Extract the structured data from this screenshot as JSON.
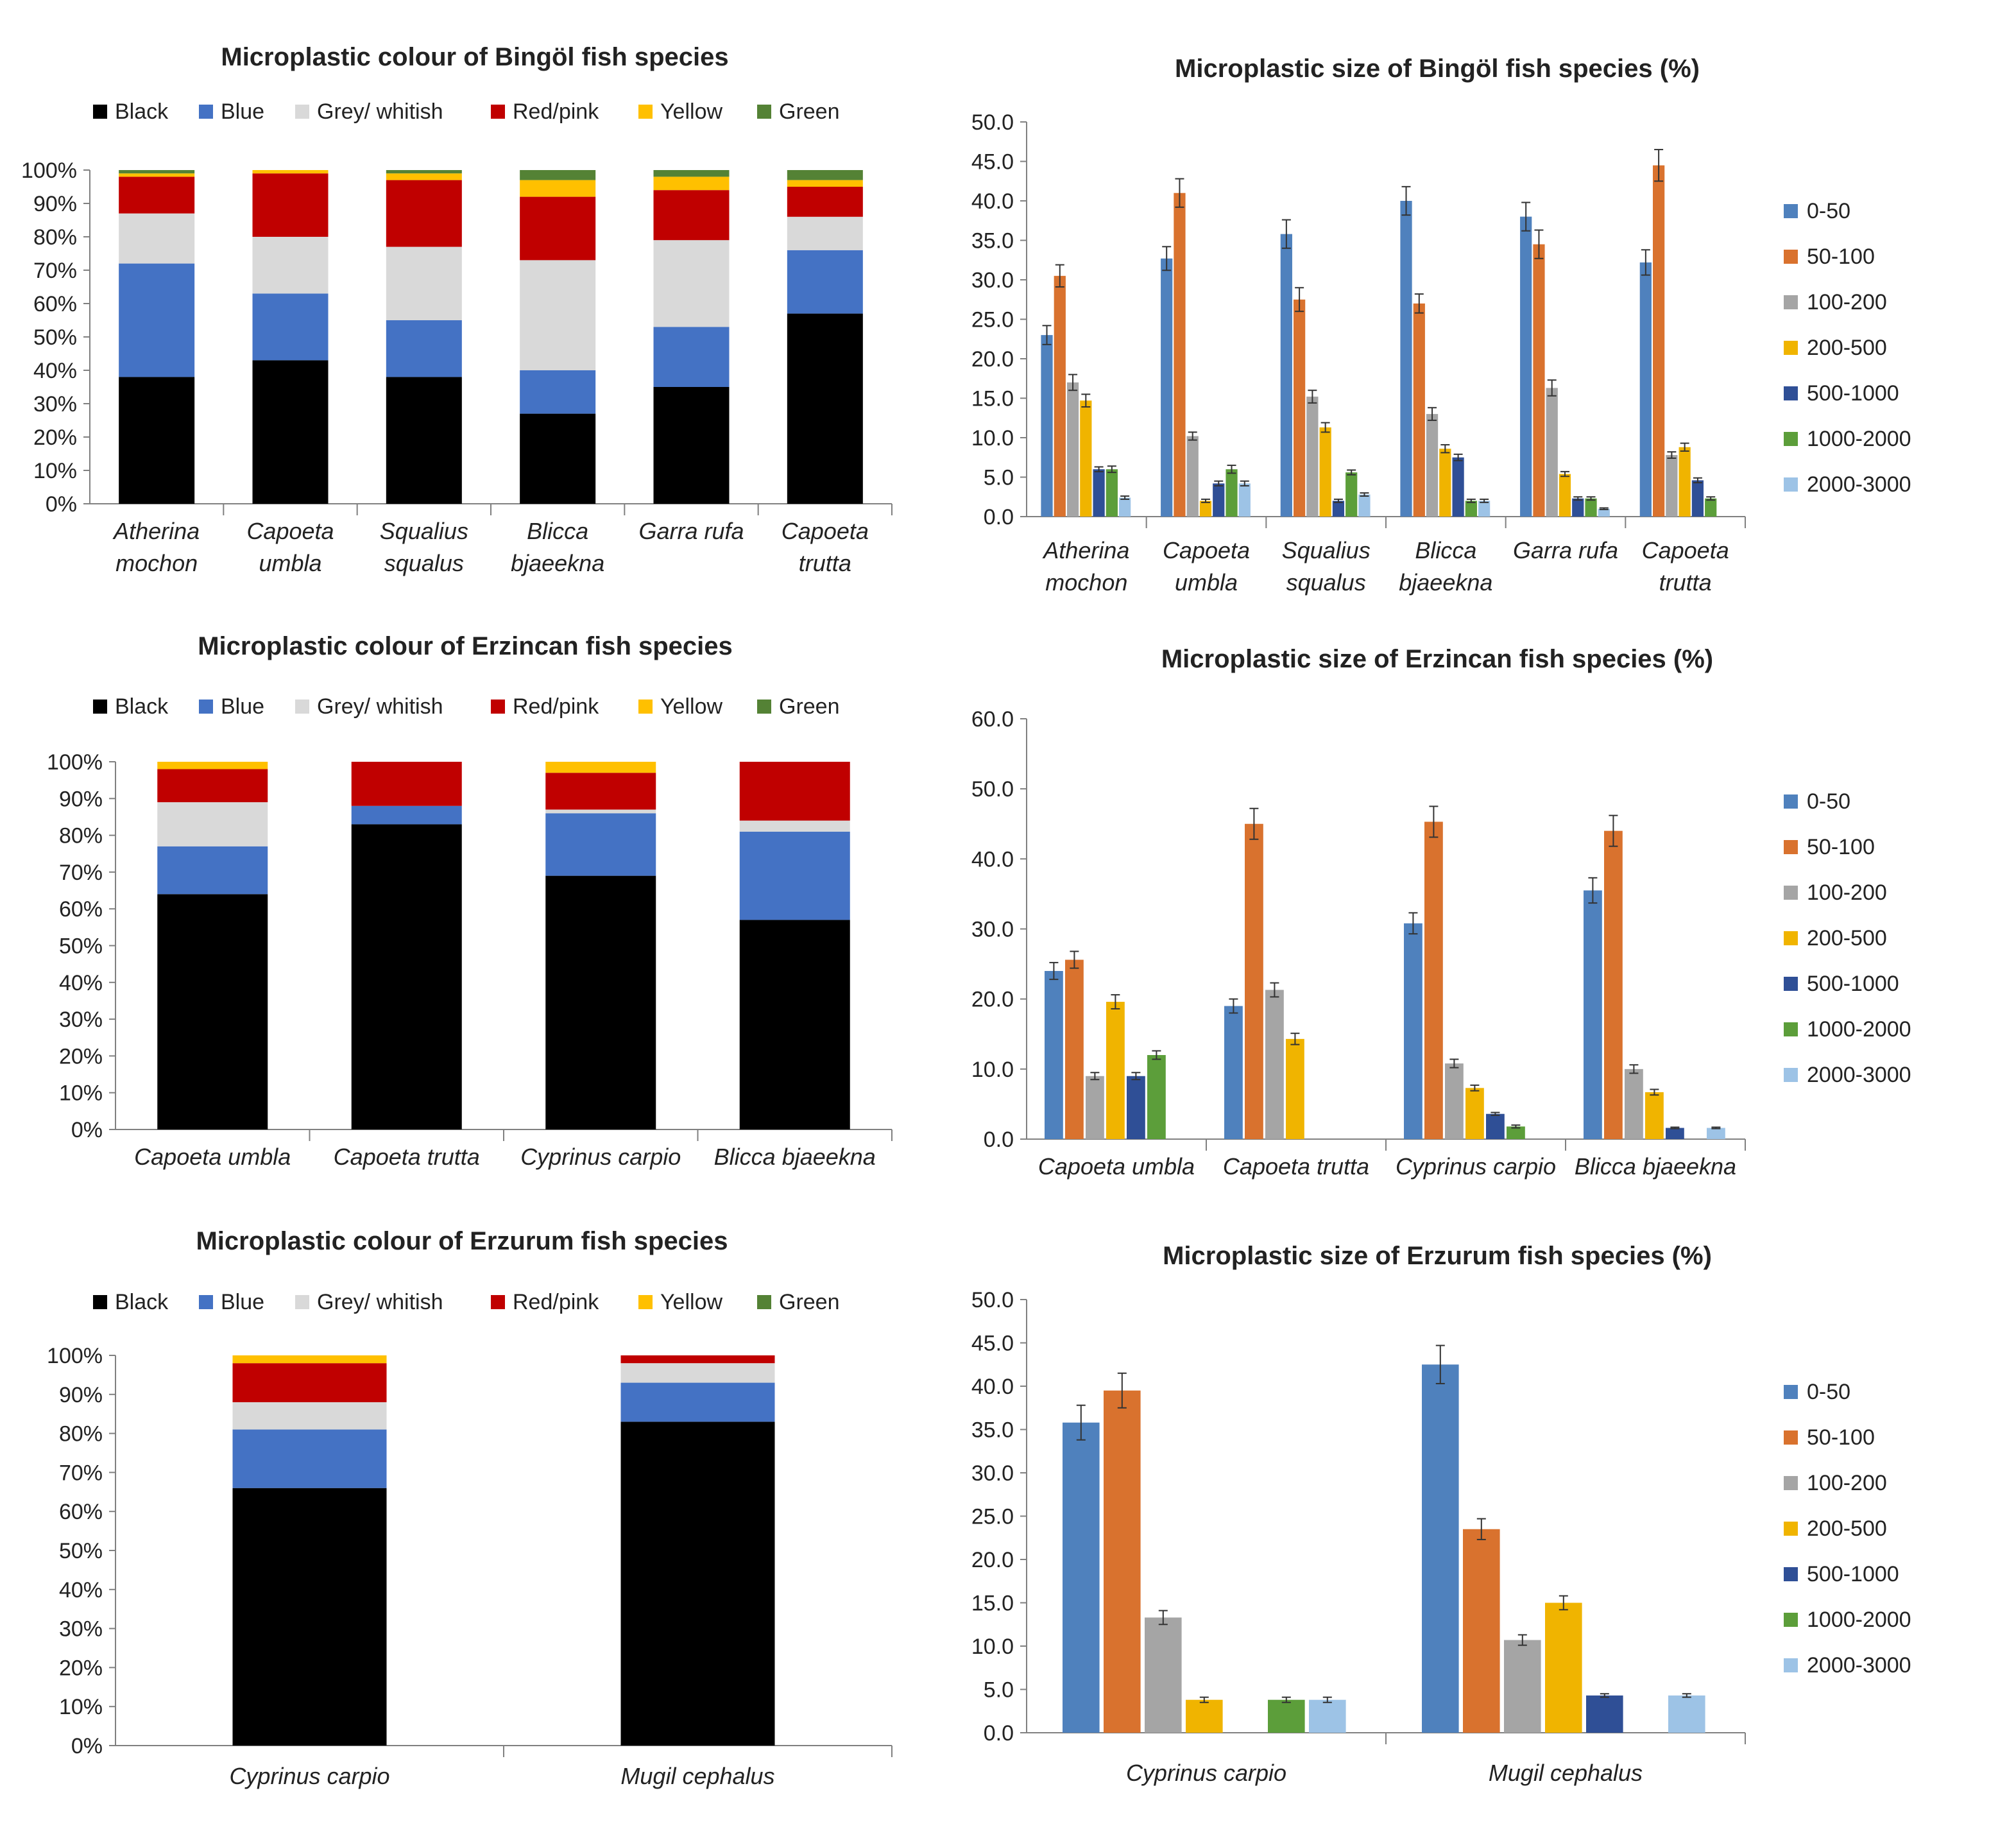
{
  "colors": {
    "Black": "#000000",
    "Blue": "#4472C4",
    "Grey/ whitish": "#D9D9D9",
    "Red/pink": "#C00000",
    "Yellow": "#FFC000",
    "Green": "#548235",
    "0-50": "#4F81BD",
    "50-100": "#D9722E",
    "100-200": "#A5A5A5",
    "200-500": "#F0B400",
    "500-1000": "#2F4F96",
    "1000-2000": "#5C9E3A",
    "2000-3000": "#9DC3E6",
    "axis": "#808080",
    "text": "#222222"
  },
  "chart_data": [
    {
      "id": "bingol-colour",
      "type": "bar",
      "stacked": true,
      "title": "Microplastic colour of Bingöl fish species",
      "legend_position": "top",
      "ylim": [
        0,
        100
      ],
      "y_ticks": [
        "0%",
        "10%",
        "20%",
        "30%",
        "40%",
        "50%",
        "60%",
        "70%",
        "80%",
        "90%",
        "100%"
      ],
      "categories": [
        "Atherina mochon",
        "Capoeta umbla",
        "Squalius squalus",
        "Blicca bjaeekna",
        "Garra rufa",
        "Capoeta trutta"
      ],
      "series": [
        {
          "name": "Black",
          "values": [
            38,
            43,
            38,
            27,
            35,
            57
          ]
        },
        {
          "name": "Blue",
          "values": [
            34,
            20,
            17,
            13,
            18,
            19
          ]
        },
        {
          "name": "Grey/ whitish",
          "values": [
            15,
            17,
            22,
            33,
            26,
            10
          ]
        },
        {
          "name": "Red/pink",
          "values": [
            11,
            19,
            20,
            19,
            15,
            9
          ]
        },
        {
          "name": "Yellow",
          "values": [
            1,
            1,
            2,
            5,
            4,
            2
          ]
        },
        {
          "name": "Green",
          "values": [
            1,
            0,
            1,
            3,
            2,
            3
          ]
        }
      ]
    },
    {
      "id": "bingol-size",
      "type": "bar",
      "stacked": false,
      "title": "Microplastic size of Bingöl fish species (%)",
      "legend_position": "right",
      "ylim": [
        0,
        50
      ],
      "y_ticks": [
        "0.0",
        "5.0",
        "10.0",
        "15.0",
        "20.0",
        "25.0",
        "30.0",
        "35.0",
        "40.0",
        "45.0",
        "50.0"
      ],
      "categories": [
        "Atherina mochon",
        "Capoeta umbla",
        "Squalius squalus",
        "Blicca bjaeekna",
        "Garra rufa",
        "Capoeta trutta"
      ],
      "series": [
        {
          "name": "0-50",
          "values": [
            23.0,
            32.7,
            35.8,
            40.0,
            38.0,
            32.2
          ]
        },
        {
          "name": "50-100",
          "values": [
            30.5,
            41.0,
            27.5,
            27.0,
            34.5,
            44.5
          ]
        },
        {
          "name": "100-200",
          "values": [
            17.0,
            10.2,
            15.2,
            13.0,
            16.3,
            7.8
          ]
        },
        {
          "name": "200-500",
          "values": [
            14.7,
            2.0,
            11.3,
            8.6,
            5.4,
            8.8
          ]
        },
        {
          "name": "500-1000",
          "values": [
            6.0,
            4.2,
            2.0,
            7.5,
            2.3,
            4.6
          ]
        },
        {
          "name": "1000-2000",
          "values": [
            6.0,
            6.0,
            5.6,
            2.0,
            2.3,
            2.3
          ]
        },
        {
          "name": "2000-3000",
          "values": [
            2.4,
            4.2,
            2.8,
            2.0,
            1.0,
            0
          ]
        }
      ],
      "errors": [
        [
          1.2,
          1.5,
          1.8,
          1.8,
          1.8,
          1.6
        ],
        [
          1.4,
          1.8,
          1.5,
          1.2,
          1.8,
          2.0
        ],
        [
          1.0,
          0.5,
          0.8,
          0.8,
          1.0,
          0.4
        ],
        [
          0.8,
          0.2,
          0.6,
          0.5,
          0.3,
          0.5
        ],
        [
          0.3,
          0.3,
          0.2,
          0.4,
          0.2,
          0.3
        ],
        [
          0.4,
          0.5,
          0.3,
          0.2,
          0.2,
          0.2
        ],
        [
          0.2,
          0.3,
          0.2,
          0.2,
          0.1,
          0
        ]
      ]
    },
    {
      "id": "erzincan-colour",
      "type": "bar",
      "stacked": true,
      "title": "Microplastic colour of Erzincan fish species",
      "legend_position": "top",
      "ylim": [
        0,
        100
      ],
      "y_ticks": [
        "0%",
        "10%",
        "20%",
        "30%",
        "40%",
        "50%",
        "60%",
        "70%",
        "80%",
        "90%",
        "100%"
      ],
      "categories": [
        "Capoeta umbla",
        "Capoeta trutta",
        "Cyprinus carpio",
        "Blicca bjaeekna"
      ],
      "series": [
        {
          "name": "Black",
          "values": [
            64,
            83,
            69,
            57
          ]
        },
        {
          "name": "Blue",
          "values": [
            13,
            5,
            17,
            24
          ]
        },
        {
          "name": "Grey/ whitish",
          "values": [
            12,
            0,
            1,
            3
          ]
        },
        {
          "name": "Red/pink",
          "values": [
            9,
            12,
            10,
            16
          ]
        },
        {
          "name": "Yellow",
          "values": [
            2,
            0,
            3,
            0
          ]
        },
        {
          "name": "Green",
          "values": [
            0,
            0,
            0,
            0
          ]
        }
      ]
    },
    {
      "id": "erzincan-size",
      "type": "bar",
      "stacked": false,
      "title": "Microplastic size of Erzincan fish species (%)",
      "legend_position": "right",
      "ylim": [
        0,
        60
      ],
      "y_ticks": [
        "0.0",
        "10.0",
        "20.0",
        "30.0",
        "40.0",
        "50.0",
        "60.0"
      ],
      "categories": [
        "Capoeta umbla",
        "Capoeta trutta",
        "Cyprinus carpio",
        "Blicca bjaeekna"
      ],
      "series": [
        {
          "name": "0-50",
          "values": [
            24.0,
            19.0,
            30.8,
            35.5
          ]
        },
        {
          "name": "50-100",
          "values": [
            25.6,
            45.0,
            45.3,
            44.0
          ]
        },
        {
          "name": "100-200",
          "values": [
            9.0,
            21.3,
            10.8,
            10.0
          ]
        },
        {
          "name": "200-500",
          "values": [
            19.6,
            14.3,
            7.3,
            6.7
          ]
        },
        {
          "name": "500-1000",
          "values": [
            9.0,
            0,
            3.6,
            1.6
          ]
        },
        {
          "name": "1000-2000",
          "values": [
            12.0,
            0,
            1.8,
            0
          ]
        },
        {
          "name": "2000-3000",
          "values": [
            0,
            0,
            0,
            1.6
          ]
        }
      ],
      "errors": [
        [
          1.2,
          1.0,
          1.5,
          1.8
        ],
        [
          1.2,
          2.2,
          2.2,
          2.2
        ],
        [
          0.5,
          1.0,
          0.6,
          0.6
        ],
        [
          1.0,
          0.8,
          0.4,
          0.4
        ],
        [
          0.5,
          0,
          0.2,
          0.1
        ],
        [
          0.6,
          0,
          0.2,
          0
        ],
        [
          0,
          0,
          0,
          0.1
        ]
      ]
    },
    {
      "id": "erzurum-colour",
      "type": "bar",
      "stacked": true,
      "title": "Microplastic colour of Erzurum fish species",
      "legend_position": "top",
      "ylim": [
        0,
        100
      ],
      "y_ticks": [
        "0%",
        "10%",
        "20%",
        "30%",
        "40%",
        "50%",
        "60%",
        "70%",
        "80%",
        "90%",
        "100%"
      ],
      "categories": [
        "Cyprinus carpio",
        "Mugil cephalus"
      ],
      "series": [
        {
          "name": "Black",
          "values": [
            66,
            83
          ]
        },
        {
          "name": "Blue",
          "values": [
            15,
            10
          ]
        },
        {
          "name": "Grey/ whitish",
          "values": [
            7,
            5
          ]
        },
        {
          "name": "Red/pink",
          "values": [
            10,
            2
          ]
        },
        {
          "name": "Yellow",
          "values": [
            2,
            0
          ]
        },
        {
          "name": "Green",
          "values": [
            0,
            0
          ]
        }
      ]
    },
    {
      "id": "erzurum-size",
      "type": "bar",
      "stacked": false,
      "title": "Microplastic size of Erzurum fish species (%)",
      "legend_position": "right",
      "ylim": [
        0,
        50
      ],
      "y_ticks": [
        "0.0",
        "5.0",
        "10.0",
        "15.0",
        "20.0",
        "25.0",
        "30.0",
        "35.0",
        "40.0",
        "45.0",
        "50.0"
      ],
      "categories": [
        "Cyprinus carpio",
        "Mugil cephalus"
      ],
      "series": [
        {
          "name": "0-50",
          "values": [
            35.8,
            42.5
          ]
        },
        {
          "name": "50-100",
          "values": [
            39.5,
            23.5
          ]
        },
        {
          "name": "100-200",
          "values": [
            13.3,
            10.7
          ]
        },
        {
          "name": "200-500",
          "values": [
            3.8,
            15.0
          ]
        },
        {
          "name": "500-1000",
          "values": [
            0,
            4.3
          ]
        },
        {
          "name": "1000-2000",
          "values": [
            3.8,
            0
          ]
        },
        {
          "name": "2000-3000",
          "values": [
            3.8,
            4.3
          ]
        }
      ],
      "errors": [
        [
          2.0,
          2.2
        ],
        [
          2.0,
          1.2
        ],
        [
          0.8,
          0.6
        ],
        [
          0.3,
          0.8
        ],
        [
          0,
          0.2
        ],
        [
          0.3,
          0
        ],
        [
          0.3,
          0.2
        ]
      ]
    }
  ]
}
